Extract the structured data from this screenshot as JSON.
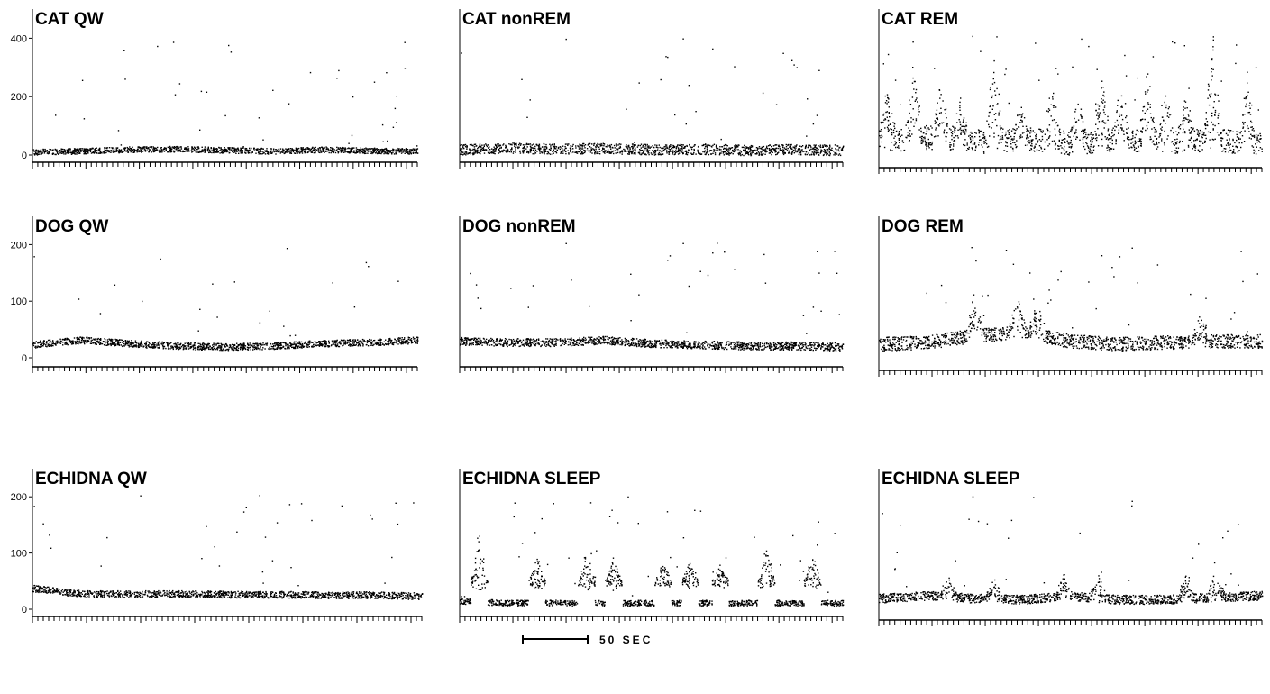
{
  "chart_data": [
    {
      "type": "scatter",
      "title": "CAT QW",
      "ylim": [
        0,
        500
      ],
      "yticks": [
        0,
        200,
        400
      ],
      "xlim": [
        0,
        100
      ],
      "n_xticks": 72,
      "profile": {
        "base": [
          12,
          15,
          20,
          22,
          18,
          15,
          20,
          16,
          15
        ],
        "spread": 10,
        "burst_base": 0,
        "spikes": []
      }
    },
    {
      "type": "scatter",
      "title": "CAT nonREM",
      "ylim": [
        0,
        500
      ],
      "yticks": [],
      "xlim": [
        0,
        100
      ],
      "n_xticks": 72,
      "profile": {
        "base": [
          20,
          25,
          22,
          24,
          20,
          22,
          18,
          20,
          18
        ],
        "spread": 18,
        "burst_base": 0,
        "spikes": []
      }
    },
    {
      "type": "scatter",
      "title": "CAT REM",
      "ylim": [
        0,
        500
      ],
      "yticks": [],
      "xlim": [
        0,
        100
      ],
      "n_xticks": 72,
      "profile": {
        "base": [
          60,
          70,
          55,
          65,
          50,
          60,
          55,
          60,
          50
        ],
        "spread": 40,
        "burst_base": 0,
        "spikes": [
          {
            "x": 2,
            "h": 150
          },
          {
            "x": 9,
            "h": 260
          },
          {
            "x": 16,
            "h": 200
          },
          {
            "x": 21,
            "h": 140
          },
          {
            "x": 30,
            "h": 300
          },
          {
            "x": 37,
            "h": 120
          },
          {
            "x": 45,
            "h": 190
          },
          {
            "x": 52,
            "h": 160
          },
          {
            "x": 58,
            "h": 220
          },
          {
            "x": 63,
            "h": 200
          },
          {
            "x": 70,
            "h": 260
          },
          {
            "x": 75,
            "h": 180
          },
          {
            "x": 80,
            "h": 150
          },
          {
            "x": 87,
            "h": 390
          },
          {
            "x": 96,
            "h": 260
          }
        ]
      }
    },
    {
      "type": "scatter",
      "title": "DOG QW",
      "ylim": [
        0,
        250
      ],
      "yticks": [
        0,
        100,
        200
      ],
      "xlim": [
        0,
        100
      ],
      "n_xticks": 72,
      "profile": {
        "base": [
          24,
          32,
          26,
          22,
          20,
          22,
          26,
          28,
          32
        ],
        "spread": 6,
        "burst_base": 0,
        "spikes": []
      }
    },
    {
      "type": "scatter",
      "title": "DOG nonREM",
      "ylim": [
        0,
        250
      ],
      "yticks": [],
      "xlim": [
        0,
        100
      ],
      "n_xticks": 72,
      "profile": {
        "base": [
          30,
          28,
          28,
          32,
          26,
          24,
          22,
          22,
          20
        ],
        "spread": 7,
        "burst_base": 0,
        "spikes": []
      }
    },
    {
      "type": "scatter",
      "title": "DOG REM",
      "ylim": [
        0,
        250
      ],
      "yticks": [],
      "xlim": [
        0,
        100
      ],
      "n_xticks": 72,
      "profile": {
        "base": [
          25,
          28,
          40,
          45,
          30,
          25,
          28,
          30,
          30
        ],
        "spread": 12,
        "burst_base": 0,
        "spikes": [
          {
            "x": 25,
            "h": 80
          },
          {
            "x": 36,
            "h": 70
          },
          {
            "x": 41,
            "h": 60
          },
          {
            "x": 84,
            "h": 50
          }
        ]
      }
    },
    {
      "type": "scatter",
      "title": "ECHIDNA QW",
      "ylim": [
        0,
        250
      ],
      "yticks": [
        0,
        100,
        200
      ],
      "xlim": [
        0,
        100
      ],
      "n_xticks": 72,
      "profile": {
        "base": [
          38,
          28,
          28,
          28,
          27,
          27,
          26,
          26,
          24
        ],
        "spread": 6,
        "burst_base": 0,
        "spikes": []
      }
    },
    {
      "type": "scatter",
      "title": "ECHIDNA SLEEP",
      "ylim": [
        0,
        250
      ],
      "yticks": [],
      "xlim": [
        0,
        100
      ],
      "n_xticks": 72,
      "profile": {
        "base": [
          15,
          12,
          12,
          12,
          12,
          12,
          12,
          12,
          12
        ],
        "spread": 5,
        "burst_base": 35,
        "spikes": [
          {
            "x": 5,
            "h": 100
          },
          {
            "x": 20,
            "h": 60
          },
          {
            "x": 33,
            "h": 70
          },
          {
            "x": 40,
            "h": 55
          },
          {
            "x": 53,
            "h": 45
          },
          {
            "x": 60,
            "h": 50
          },
          {
            "x": 68,
            "h": 40
          },
          {
            "x": 80,
            "h": 80
          },
          {
            "x": 92,
            "h": 70
          }
        ]
      }
    },
    {
      "type": "scatter",
      "title": "ECHIDNA SLEEP",
      "ylim": [
        0,
        250
      ],
      "yticks": [],
      "xlim": [
        0,
        100
      ],
      "n_xticks": 72,
      "profile": {
        "base": [
          20,
          25,
          20,
          18,
          24,
          18,
          18,
          22,
          25
        ],
        "spread": 8,
        "burst_base": 0,
        "spikes": [
          {
            "x": 18,
            "h": 40
          },
          {
            "x": 30,
            "h": 30
          },
          {
            "x": 48,
            "h": 40
          },
          {
            "x": 57,
            "h": 45
          },
          {
            "x": 80,
            "h": 50
          },
          {
            "x": 88,
            "h": 60
          }
        ]
      }
    }
  ],
  "scale_bar": {
    "label": "50 SEC",
    "seconds": 50
  }
}
